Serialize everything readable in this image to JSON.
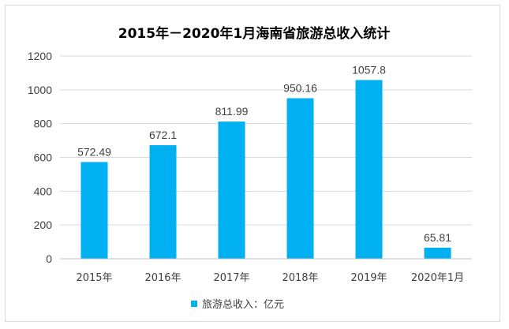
{
  "chart_data": {
    "type": "bar",
    "title": "2015年－2020年1月海南省旅游总收入统计",
    "categories": [
      "2015年",
      "2016年",
      "2017年",
      "2018年",
      "2019年",
      "2020年1月"
    ],
    "series": [
      {
        "name": "旅游总收入：亿元",
        "values": [
          572.49,
          672.1,
          811.99,
          950.16,
          1057.8,
          65.81
        ],
        "labels": [
          "572.49",
          "672.1",
          "811.99",
          "950.16",
          "1057.8",
          "65.81"
        ]
      }
    ],
    "ylim": [
      0,
      1200
    ],
    "yticks": [
      0,
      200,
      400,
      600,
      800,
      1000,
      1200
    ],
    "grid": true,
    "legend_position": "bottom",
    "colors": {
      "bar": "#00B0F0",
      "grid": "#d9d9d9",
      "axis": "#bfbfbf"
    }
  }
}
